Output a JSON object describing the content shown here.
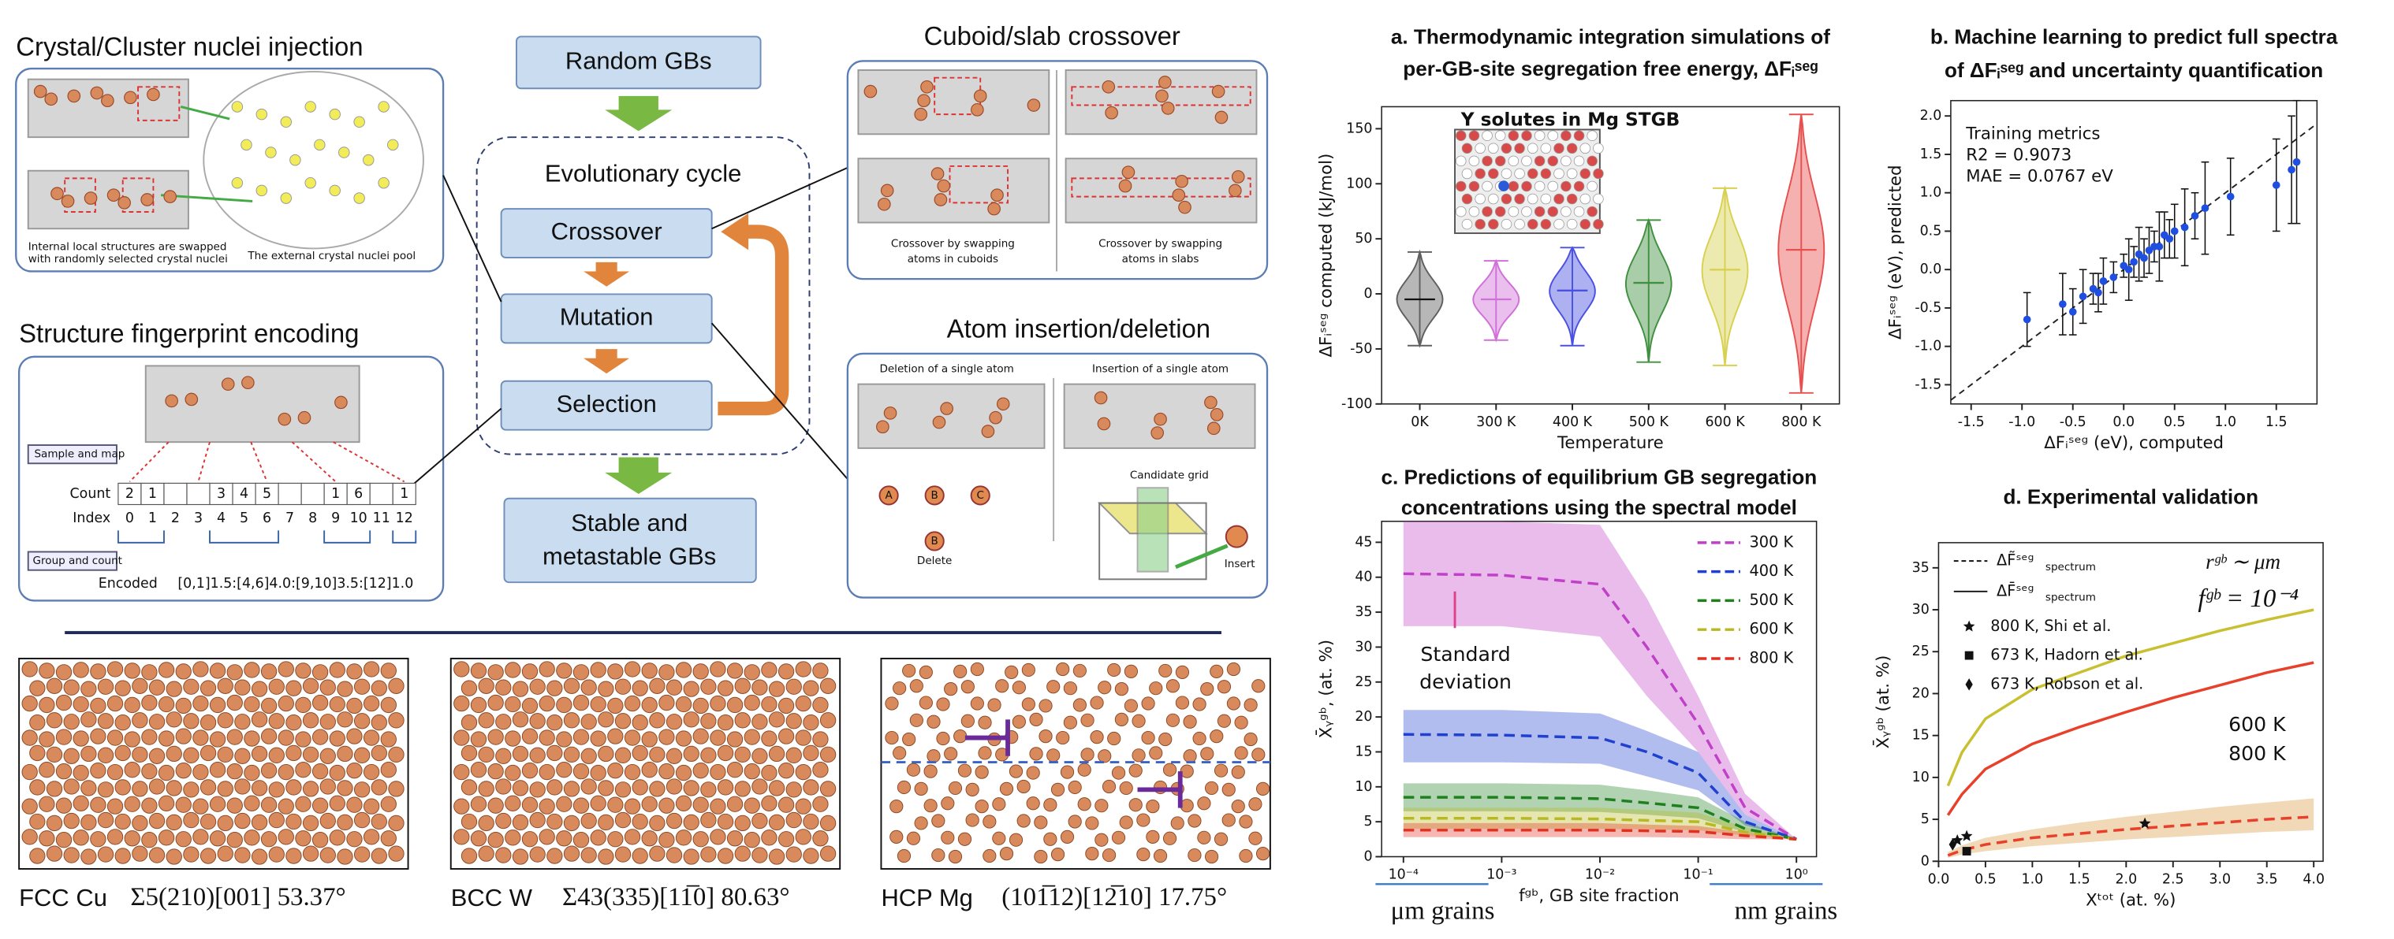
{
  "diagram": {
    "injection": {
      "title": "Crystal/Cluster nuclei injection",
      "caption_left": [
        "Internal local structures are swapped",
        "with randomly selected crystal nuclei"
      ],
      "caption_right": "The external crystal nuclei pool"
    },
    "fingerprint": {
      "title": "Structure fingerprint encoding",
      "sample_and_map": "Sample and map",
      "count_label": "Count",
      "counts": [
        2,
        1,
        null,
        null,
        3,
        4,
        5,
        null,
        null,
        1,
        6,
        null,
        1
      ],
      "index_label": "Index",
      "indices": [
        0,
        1,
        2,
        3,
        4,
        5,
        6,
        7,
        8,
        9,
        10,
        11,
        12
      ],
      "group_and_count": "Group and count",
      "encoded_label": "Encoded",
      "encoded": "[0,1]1.5:[4,6]4.0:[9,10]3.5:[12]1.0"
    },
    "cycle": {
      "start": "Random GBs",
      "title": "Evolutionary cycle",
      "steps": [
        "Crossover",
        "Mutation",
        "Selection"
      ],
      "end": [
        "Stable and",
        "metastable GBs"
      ]
    },
    "crossover": {
      "title": "Cuboid/slab crossover",
      "captions": [
        [
          "Crossover by swapping",
          "atoms in cuboids"
        ],
        [
          "Crossover by swapping",
          "atoms in slabs"
        ]
      ]
    },
    "insertion": {
      "title": "Atom insertion/deletion",
      "deletion": "Deletion of a single atom",
      "insertion": "Insertion of a single atom",
      "atoms": [
        "A",
        "B",
        "C"
      ],
      "delete": "Delete",
      "grid": "Candidate grid",
      "insert": "Insert"
    },
    "structures": [
      {
        "name": "FCC Cu",
        "label": "Σ5(210)[001] 53.37°"
      },
      {
        "name": "BCC W",
        "label": "Σ43(335)[11̅0] 80.63°"
      },
      {
        "name": "HCP Mg",
        "label": "(101̅12)[12̅10] 17.75°"
      }
    ]
  },
  "chart_data": [
    {
      "type": "violin",
      "title": [
        "a. Thermodynamic integration simulations of",
        "per-GB-site segregation free energy, ΔFᵢˢᵉᵍ"
      ],
      "annotation": "Y solutes in Mg STGB",
      "xlabel": "Temperature",
      "ylabel": "ΔFᵢˢᵉᵍ computed (kJ/mol)",
      "categories": [
        "0K",
        "300 K",
        "400 K",
        "500 K",
        "600 K",
        "800 K"
      ],
      "colors": [
        "#606060",
        "#d070d8",
        "#4a50e0",
        "#409040",
        "#d8d050",
        "#e85050"
      ],
      "min": [
        -47,
        -42,
        -47,
        -62,
        -65,
        -90
      ],
      "median": [
        -5,
        -5,
        3,
        10,
        22,
        40
      ],
      "max": [
        38,
        30,
        42,
        67,
        96,
        163
      ],
      "ylim": [
        -100,
        170
      ],
      "yticks": [
        -100,
        -50,
        0,
        50,
        100,
        150
      ]
    },
    {
      "type": "scatter",
      "title": [
        "b. Machine learning to predict full spectra",
        "of ΔFᵢˢᵉᵍ and uncertainty quantification"
      ],
      "annotation": [
        "Training metrics",
        "R2 = 0.9073",
        "MAE = 0.0767 eV"
      ],
      "xlabel": "ΔFᵢˢᵉᵍ (eV), computed",
      "ylabel": "ΔFᵢˢᵉᵍ (eV), predicted",
      "color": "#1f4fe0",
      "identity_line": true,
      "x": [
        -0.95,
        -0.6,
        -0.5,
        -0.4,
        -0.3,
        -0.25,
        -0.2,
        -0.1,
        0,
        0.05,
        0.1,
        0.15,
        0.2,
        0.25,
        0.3,
        0.35,
        0.4,
        0.45,
        0.5,
        0.6,
        0.7,
        0.8,
        1.05,
        1.5,
        1.65,
        1.7
      ],
      "values": [
        -0.65,
        -0.45,
        -0.55,
        -0.35,
        -0.25,
        -0.3,
        -0.15,
        -0.1,
        0.05,
        0,
        0.1,
        0.2,
        0.15,
        0.25,
        0.3,
        0.3,
        0.45,
        0.4,
        0.5,
        0.55,
        0.7,
        0.8,
        0.95,
        1.1,
        1.3,
        1.4
      ],
      "errors": [
        0.35,
        0.4,
        0.3,
        0.35,
        0.2,
        0.25,
        0.3,
        0.2,
        0.15,
        0.4,
        0.2,
        0.35,
        0.25,
        0.3,
        0.2,
        0.45,
        0.3,
        0.25,
        0.35,
        0.5,
        0.3,
        0.6,
        0.5,
        0.6,
        0.7,
        0.8
      ],
      "xlim": [
        -1.7,
        1.9
      ],
      "xticks": [
        -1.5,
        {
          "value": -1,
          "label": "-1.0"
        },
        -0.5,
        {
          "value": 0,
          "label": "0.0"
        },
        0.5,
        {
          "value": 1,
          "label": "1.0"
        },
        1.5
      ],
      "ylim": [
        -1.75,
        2.2
      ],
      "yticks": [
        -1.5,
        {
          "value": -1,
          "label": "-1.0"
        },
        -0.5,
        {
          "value": 0,
          "label": "0.0"
        },
        0.5,
        {
          "value": 1,
          "label": "1.0"
        },
        1.5,
        {
          "value": 2,
          "label": "2.0"
        }
      ]
    },
    {
      "type": "line",
      "log_x": true,
      "legend": "upper right",
      "title": [
        "c. Predictions of equilibrium GB segregation",
        "concentrations using the spectral model"
      ],
      "annotation": {
        "std": [
          "Standard",
          "deviation"
        ],
        "left": "μm grains",
        "right": "nm grains"
      },
      "xlabel": "fᵍᵇ, GB site fraction",
      "ylabel": "X̄ᵧᵍᵇ, (at. %)",
      "x": [
        0.0001,
        0.001,
        0.01,
        0.03,
        0.1,
        0.3,
        1
      ],
      "series": [
        {
          "name": "300 K",
          "color": "#c040c8",
          "values": [
            40.5,
            40.3,
            39,
            30,
            19,
            7,
            2.5
          ],
          "lower": [
            33,
            33,
            31.5,
            23,
            15,
            6,
            2.5
          ],
          "upper": [
            48,
            48,
            47.5,
            37,
            23,
            9,
            2.5
          ]
        },
        {
          "name": "400 K",
          "color": "#2040d0",
          "values": [
            17.5,
            17.4,
            17,
            15,
            12,
            5,
            2.5
          ],
          "lower": [
            13.5,
            13.5,
            13.3,
            11.5,
            9.5,
            4.5,
            2.5
          ],
          "upper": [
            21,
            21,
            20.5,
            18,
            15,
            6,
            2.5
          ]
        },
        {
          "name": "500 K",
          "color": "#208020",
          "values": [
            8.5,
            8.5,
            8.3,
            7.7,
            7,
            4,
            2.5
          ],
          "lower": [
            6.5,
            6.5,
            6.4,
            6,
            5.5,
            3.5,
            2.5
          ],
          "upper": [
            10.5,
            10.5,
            10.3,
            9.5,
            8.5,
            5,
            2.5
          ]
        },
        {
          "name": "600 K",
          "color": "#b8b820",
          "values": [
            5.5,
            5.5,
            5.4,
            5.2,
            5,
            3.5,
            2.5
          ],
          "lower": [
            4,
            4,
            4,
            3.9,
            3.8,
            3,
            2.5
          ],
          "upper": [
            7,
            7,
            7,
            6.7,
            6.3,
            4.2,
            2.5
          ]
        },
        {
          "name": "800 K",
          "color": "#e03020",
          "values": [
            3.8,
            3.8,
            3.8,
            3.7,
            3.6,
            3,
            2.5
          ],
          "lower": [
            2.8,
            2.8,
            2.8,
            2.8,
            2.7,
            2.5,
            2.5
          ],
          "upper": [
            4.8,
            4.8,
            4.8,
            4.6,
            4.4,
            3.5,
            2.5
          ]
        }
      ],
      "xlim": [
        6e-05,
        1.6
      ],
      "xticks": [
        {
          "value": 0.0001,
          "label": "10⁻⁴"
        },
        {
          "value": 0.001,
          "label": "10⁻³"
        },
        {
          "value": 0.01,
          "label": "10⁻²"
        },
        {
          "value": 0.1,
          "label": "10⁻¹"
        },
        {
          "value": 1,
          "label": "10⁰"
        }
      ],
      "ylim": [
        0,
        48
      ],
      "yticks": [
        0,
        5,
        10,
        15,
        20,
        25,
        30,
        35,
        40,
        45
      ]
    },
    {
      "type": "line",
      "title": [
        "d. Experimental validation"
      ],
      "annotation": {
        "r": "rᵍᵇ ∼ μm",
        "f": "fᵍᵇ = 10⁻⁴"
      },
      "xlabel": "Xᵗᵒᵗ (at. %)",
      "ylabel": "X̄ᵧᵍᵇ (at. %)",
      "legend_lines": [
        {
          "name": "ΔF̃ˢᵉᵍ",
          "sub": "spectrum",
          "style": "dashed"
        },
        {
          "name": "ΔF̄ˢᵉᵍ",
          "sub": "spectrum",
          "style": "solid"
        }
      ],
      "x": [
        0.1,
        0.25,
        0.5,
        1,
        1.5,
        2,
        2.5,
        3,
        3.5,
        4
      ],
      "series": [
        {
          "name": "600 K",
          "color": "#c8c030",
          "style": "solid",
          "values": [
            9,
            13,
            17,
            20.5,
            22.5,
            24.5,
            26,
            27.5,
            28.8,
            30
          ]
        },
        {
          "name": "800 K",
          "color": "#e8402a",
          "style": "solid",
          "values": [
            5.5,
            8,
            11,
            14,
            16,
            17.8,
            19.5,
            21,
            22.5,
            23.7
          ]
        },
        {
          "color": "#e8402a",
          "style": "dashed",
          "values": [
            0.7,
            1.3,
            2,
            2.8,
            3.3,
            3.8,
            4.2,
            4.6,
            5,
            5.3
          ],
          "lower": [
            0.4,
            0.8,
            1.2,
            1.8,
            2.2,
            2.6,
            2.9,
            3.2,
            3.5,
            3.7
          ],
          "upper": [
            1.1,
            1.9,
            2.8,
            3.8,
            4.6,
            5.3,
            5.9,
            6.5,
            7,
            7.5
          ],
          "band_color": "#d89030"
        }
      ],
      "points": [
        {
          "name": "800 K, Shi et al.",
          "marker": "star",
          "x": [
            0.2,
            0.3,
            2.2
          ],
          "y": [
            2.5,
            3,
            4.5
          ]
        },
        {
          "name": "673 K, Hadorn et al.",
          "marker": "square",
          "x": [
            0.3
          ],
          "y": [
            1.2
          ]
        },
        {
          "name": "673 K, Robson et al.",
          "marker": "diamond",
          "x": [
            0.15
          ],
          "y": [
            2
          ]
        }
      ],
      "xlim": [
        0,
        4.1
      ],
      "xticks": [
        {
          "value": 0,
          "label": "0.0"
        },
        0.5,
        {
          "value": 1,
          "label": "1.0"
        },
        1.5,
        {
          "value": 2,
          "label": "2.0"
        },
        2.5,
        {
          "value": 3,
          "label": "3.0"
        },
        3.5,
        {
          "value": 4,
          "label": "4.0"
        }
      ],
      "ylim": [
        0,
        38
      ],
      "yticks": [
        0,
        5,
        10,
        15,
        20,
        25,
        30,
        35
      ]
    }
  ]
}
